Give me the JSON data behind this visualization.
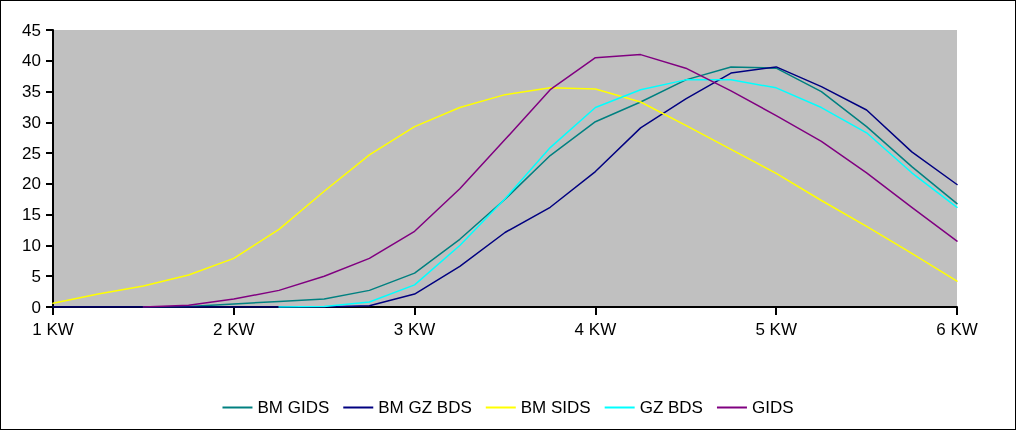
{
  "chart_data": {
    "type": "line",
    "x": [
      1,
      1.25,
      1.5,
      1.75,
      2,
      2.25,
      2.5,
      2.75,
      3,
      3.25,
      3.5,
      3.75,
      4,
      4.25,
      4.5,
      4.75,
      5,
      5.25,
      5.5,
      5.75,
      6
    ],
    "xlim": [
      1,
      6
    ],
    "xticks": [
      {
        "value": 1,
        "label": "1 KW"
      },
      {
        "value": 2,
        "label": "2 KW"
      },
      {
        "value": 3,
        "label": "3 KW"
      },
      {
        "value": 4,
        "label": "4 KW"
      },
      {
        "value": 5,
        "label": "5 KW"
      },
      {
        "value": 6,
        "label": "6 KW"
      }
    ],
    "ylim": [
      0,
      45
    ],
    "yticks": [
      0,
      5,
      10,
      15,
      20,
      25,
      30,
      35,
      40,
      45
    ],
    "grid": false,
    "legend": "bottom",
    "marker": "none",
    "line_style": "solid",
    "series": [
      {
        "name": "BM GIDS",
        "color": "#008080",
        "values": [
          null,
          null,
          0,
          0.1,
          0.5,
          0.9,
          1.3,
          2.7,
          5.5,
          11,
          17.5,
          24.6,
          30.1,
          33.3,
          36.9,
          39,
          38.8,
          35,
          29.3,
          22.8,
          16.8
        ]
      },
      {
        "name": "BM GZ BDS",
        "color": "#000080",
        "values": [
          0,
          0,
          0,
          0,
          0,
          0,
          0,
          0.2,
          2.1,
          6.6,
          12.1,
          16.2,
          22,
          29.1,
          33.8,
          38,
          39,
          35.8,
          32,
          25.2,
          19.9
        ]
      },
      {
        "name": "BM SIDS",
        "color": "#ffff00",
        "values": [
          0.6,
          2.1,
          3.4,
          5.2,
          7.9,
          12.6,
          18.8,
          24.7,
          29.3,
          32.4,
          34.5,
          35.6,
          35.4,
          33.3,
          29.5,
          25.6,
          21.7,
          17.3,
          13.1,
          8.7,
          4.2
        ]
      },
      {
        "name": "GZ BDS",
        "color": "#00ffff",
        "values": [
          null,
          null,
          null,
          null,
          null,
          0,
          0.1,
          0.8,
          3.6,
          10,
          17.6,
          25.9,
          32.4,
          35.3,
          36.9,
          36.9,
          35.6,
          32.4,
          28.3,
          21.8,
          16.2
        ]
      },
      {
        "name": "GIDS",
        "color": "#800080",
        "values": [
          null,
          null,
          0,
          0.3,
          1.3,
          2.7,
          5,
          7.9,
          12.3,
          19.2,
          27.2,
          35.3,
          40.5,
          41,
          38.8,
          35.1,
          31.1,
          26.9,
          21.8,
          16.2,
          10.7
        ]
      }
    ]
  }
}
